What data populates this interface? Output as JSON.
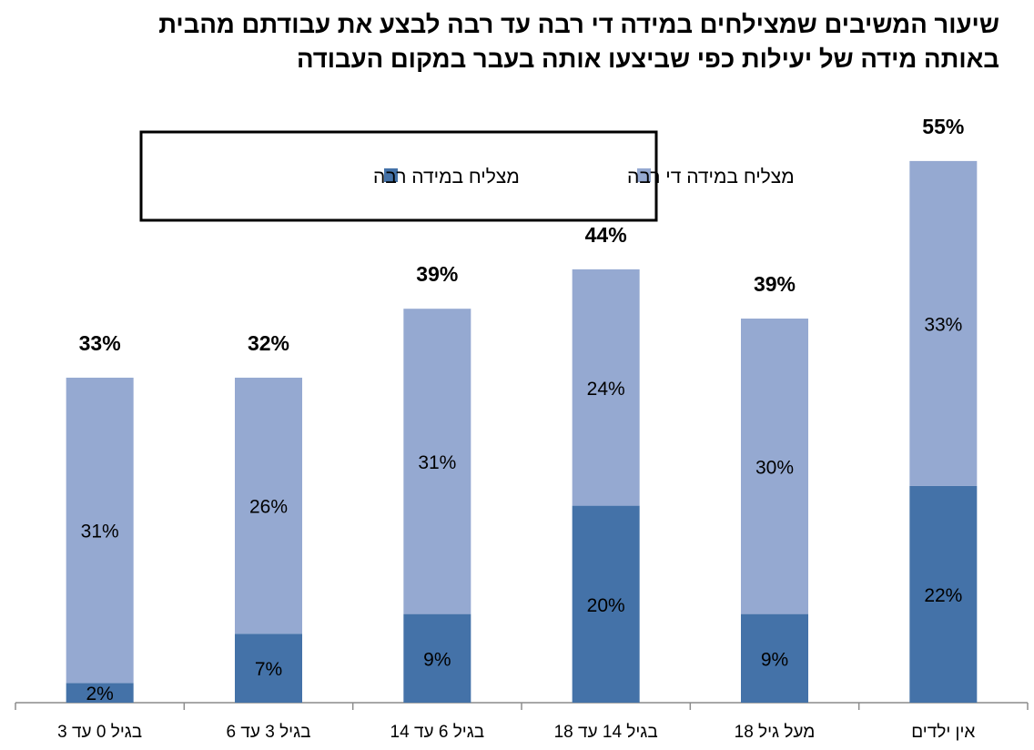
{
  "title": {
    "line1": "שיעור המשיבים שמצילחים במידה די רבה עד רבה לבצע את עבודתם מהבית",
    "line2": "באותה מידה של יעילות כפי שביצעו אותה בעבר במקום העבודה"
  },
  "chart_data": {
    "type": "bar",
    "stacked": true,
    "title": "שיעור המשיבים שמצילחים במידה די רבה עד רבה לבצע את עבודתם מהבית באותה מידה של יעילות כפי שביצעו אותה בעבר במקום העבודה",
    "categories": [
      "בגיל 0 עד 3",
      "בגיל 3 עד 6",
      "בגיל 6 עד 14",
      "בגיל 14 עד 18",
      "מעל גיל 18",
      "אין ילדים"
    ],
    "series": [
      {
        "name": "מצליח במידה רבה",
        "color": "#4472a8",
        "values": [
          2,
          7,
          9,
          20,
          9,
          22
        ],
        "labels": [
          "2%",
          "7%",
          "9%",
          "20%",
          "9%",
          "22%"
        ]
      },
      {
        "name": "מצליח במידה די רבה",
        "color": "#95a9d1",
        "values": [
          31,
          26,
          31,
          24,
          30,
          33
        ],
        "labels": [
          "31%",
          "26%",
          "31%",
          "24%",
          "30%",
          "33%"
        ]
      }
    ],
    "totals": [
      33,
      32,
      39,
      44,
      39,
      55
    ],
    "total_labels": [
      "33%",
      "32%",
      "39%",
      "44%",
      "39%",
      "55%"
    ],
    "ylim": [
      0,
      60
    ],
    "grid": false,
    "legend": {
      "position": "top-left",
      "entries": [
        "מצליח במידה די רבה",
        "מצליח במידה רבה"
      ]
    }
  }
}
